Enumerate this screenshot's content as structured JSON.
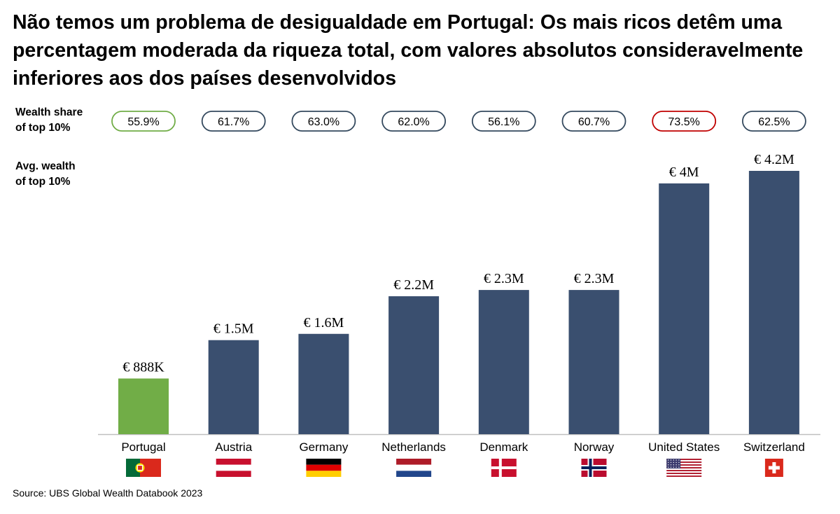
{
  "title": "Não temos um problema de desigualdade em Portugal: Os mais ricos detêm uma percentagem moderada da riqueza total, com valores absolutos consideravelmente inferiores aos dos países desenvolvidos",
  "row_labels": {
    "wealth_share": [
      "Wealth share",
      "of top 10%"
    ],
    "avg_wealth": [
      "Avg. wealth",
      "of top 10%"
    ]
  },
  "source": "Source: UBS Global Wealth Databook 2023",
  "colors": {
    "bar_default": "#3a4f6f",
    "bar_highlight": "#71ad47",
    "pill_default_border": "#34495e",
    "pill_low_border": "#71ad47",
    "pill_high_border": "#c00000"
  },
  "chart_data": {
    "type": "bar",
    "categories": [
      "Portugal",
      "Austria",
      "Germany",
      "Netherlands",
      "Denmark",
      "Norway",
      "United States",
      "Switzerland"
    ],
    "values": [
      0.888,
      1.5,
      1.6,
      2.2,
      2.3,
      2.3,
      4.0,
      4.2
    ],
    "value_labels": [
      "€ 888K",
      "€ 1.5M",
      "€ 1.6M",
      "€ 2.2M",
      "€ 2.3M",
      "€ 2.3M",
      "€ 4M",
      "€ 4.2M"
    ],
    "unit": "€ millions",
    "ylim": [
      0,
      4.2
    ],
    "wealth_share_top10": [
      "55.9%",
      "61.7%",
      "63.0%",
      "62.0%",
      "56.1%",
      "60.7%",
      "73.5%",
      "62.5%"
    ],
    "wealth_share_status": [
      "low",
      "default",
      "default",
      "default",
      "default",
      "default",
      "high",
      "default"
    ],
    "highlight": [
      "Portugal"
    ],
    "flags": [
      "portugal-flag",
      "austria-flag",
      "germany-flag",
      "netherlands-flag",
      "denmark-flag",
      "norway-flag",
      "united-states-flag",
      "switzerland-flag"
    ]
  }
}
